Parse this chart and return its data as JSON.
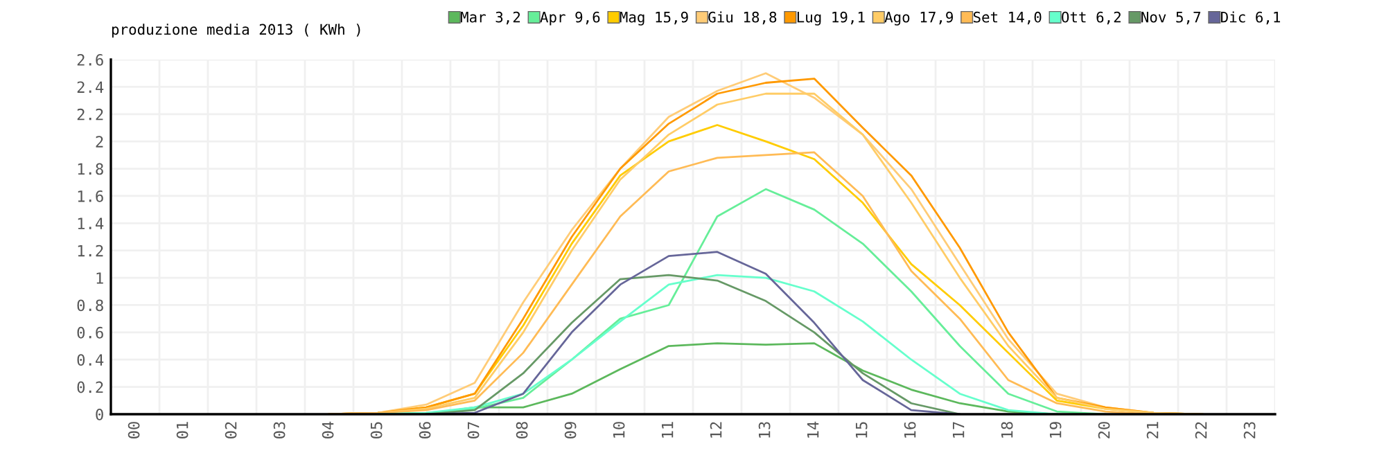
{
  "chart_data": {
    "type": "line",
    "title": "produzione media 2013 ( KWh )",
    "categories": [
      "00",
      "01",
      "02",
      "03",
      "04",
      "05",
      "06",
      "07",
      "08",
      "09",
      "10",
      "11",
      "12",
      "13",
      "14",
      "15",
      "16",
      "17",
      "18",
      "19",
      "20",
      "21",
      "22",
      "23"
    ],
    "ylim": [
      0,
      2.6
    ],
    "yticks": [
      0,
      0.2,
      0.4,
      0.6,
      0.8,
      1,
      1.2,
      1.4,
      1.6,
      1.8,
      2,
      2.2,
      2.4,
      2.6
    ],
    "grid": true,
    "legend": "top",
    "marker": "none",
    "line_style": "solid",
    "series": [
      {
        "name": "Mar 3,2",
        "color": "#5cb85c",
        "values": [
          null,
          null,
          null,
          null,
          null,
          null,
          0,
          0.05,
          0.05,
          0.15,
          0.33,
          0.5,
          0.52,
          0.51,
          0.52,
          0.32,
          0.18,
          0.08,
          0.02,
          0,
          null,
          null,
          null,
          null
        ]
      },
      {
        "name": "Apr 9,6",
        "color": "#66ee99",
        "values": [
          null,
          null,
          null,
          null,
          null,
          0,
          0.01,
          0.04,
          0.12,
          0.4,
          0.7,
          0.8,
          1.45,
          1.65,
          1.5,
          1.25,
          0.9,
          0.5,
          0.15,
          0.02,
          0,
          null,
          null,
          null
        ]
      },
      {
        "name": "Mag 15,9",
        "color": "#ffcc00",
        "values": [
          null,
          null,
          null,
          null,
          0,
          0.01,
          0.05,
          0.15,
          0.65,
          1.25,
          1.75,
          2.0,
          2.12,
          2.0,
          1.87,
          1.55,
          1.1,
          0.8,
          0.45,
          0.1,
          0.04,
          0.01,
          0,
          null
        ]
      },
      {
        "name": "Giu 18,8",
        "color": "#ffcc77",
        "values": [
          null,
          null,
          null,
          null,
          0,
          0.01,
          0.07,
          0.23,
          0.82,
          1.35,
          1.8,
          2.18,
          2.37,
          2.5,
          2.32,
          2.05,
          1.65,
          1.1,
          0.55,
          0.15,
          0.05,
          0.01,
          0,
          null
        ]
      },
      {
        "name": "Lug 19,1",
        "color": "#ff9900",
        "values": [
          null,
          null,
          null,
          null,
          0,
          0.01,
          0.05,
          0.15,
          0.7,
          1.3,
          1.8,
          2.13,
          2.35,
          2.43,
          2.46,
          2.1,
          1.75,
          1.22,
          0.6,
          0.12,
          0.05,
          0.01,
          0,
          null
        ]
      },
      {
        "name": "Ago 17,9",
        "color": "#ffcc66",
        "values": [
          null,
          null,
          null,
          null,
          0,
          0.01,
          0.04,
          0.12,
          0.6,
          1.2,
          1.72,
          2.05,
          2.27,
          2.35,
          2.35,
          2.05,
          1.55,
          1.0,
          0.5,
          0.12,
          0.04,
          0.01,
          0,
          null
        ]
      },
      {
        "name": "Set 14,0",
        "color": "#ffbb55",
        "values": [
          null,
          null,
          null,
          null,
          0,
          0.01,
          0.03,
          0.1,
          0.45,
          0.95,
          1.45,
          1.78,
          1.88,
          1.9,
          1.92,
          1.6,
          1.05,
          0.7,
          0.25,
          0.08,
          0.02,
          0,
          null,
          null
        ]
      },
      {
        "name": "Ott 6,2",
        "color": "#66ffcc",
        "values": [
          null,
          null,
          null,
          null,
          null,
          0,
          0.01,
          0.05,
          0.15,
          0.4,
          0.68,
          0.95,
          1.02,
          1.0,
          0.9,
          0.68,
          0.4,
          0.15,
          0.03,
          0,
          null,
          null,
          null,
          null
        ]
      },
      {
        "name": "Nov 5,7",
        "color": "#669966",
        "values": [
          null,
          null,
          null,
          null,
          null,
          null,
          0,
          0.03,
          0.3,
          0.67,
          0.99,
          1.02,
          0.98,
          0.83,
          0.6,
          0.3,
          0.08,
          0,
          null,
          null,
          null,
          null,
          null,
          null
        ]
      },
      {
        "name": "Dic 6,1",
        "color": "#666699",
        "values": [
          null,
          null,
          null,
          null,
          null,
          null,
          0,
          0.01,
          0.15,
          0.6,
          0.95,
          1.16,
          1.19,
          1.03,
          0.67,
          0.25,
          0.03,
          0,
          null,
          null,
          null,
          null,
          null,
          null
        ]
      }
    ]
  }
}
